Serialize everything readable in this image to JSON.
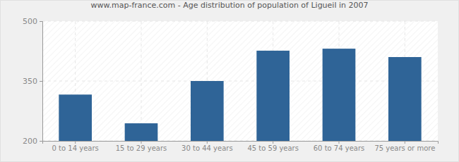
{
  "chart_data": {
    "type": "bar",
    "title": "www.map-france.com - Age distribution of population of Ligueil in 2007",
    "categories": [
      "0 to 14 years",
      "15 to 29 years",
      "30 to 44 years",
      "45 to 59 years",
      "60 to 74 years",
      "75 years or more"
    ],
    "values": [
      316,
      244,
      350,
      426,
      431,
      410
    ],
    "color": "#2f6497",
    "ylim": [
      200,
      500
    ],
    "yticks": [
      200,
      350,
      500
    ],
    "grid": true
  }
}
